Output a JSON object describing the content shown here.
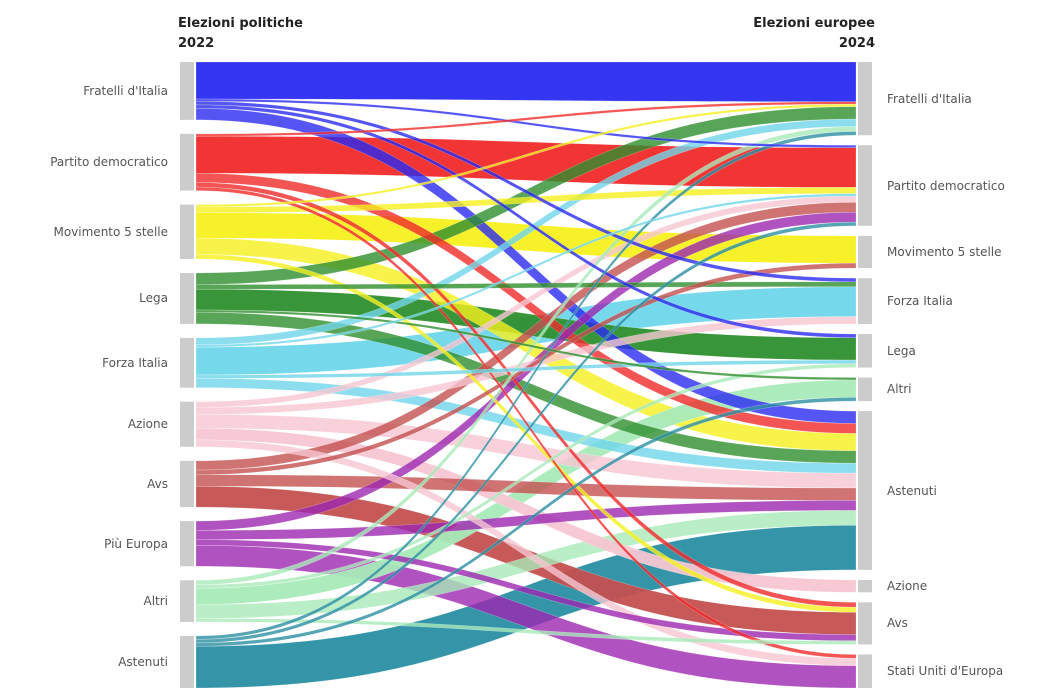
{
  "titles": {
    "left": [
      "Elezioni politiche",
      "2022"
    ],
    "right": [
      "Elezioni europee",
      "2024"
    ]
  },
  "colors": {
    "fratelli": "#2a2bf0",
    "pd": "#f02a2a",
    "m5s": "#f5f01e",
    "lega": "#2e8f2e",
    "fi": "#6fd6ea",
    "azione": "#f6c6d2",
    "avs": "#c45050",
    "piu_europa": "#9c27b0",
    "altri": "#a8eab8",
    "astenuti": "#2a8fa3",
    "sue": "#3cc43c",
    "neutral": "#cccccc"
  },
  "diagram": {
    "type": "sankey",
    "left_nodes": [
      {
        "id": "L_fdi",
        "label": "Fratelli d'Italia",
        "color": "fratelli"
      },
      {
        "id": "L_pd",
        "label": "Partito democratico",
        "color": "pd"
      },
      {
        "id": "L_m5s",
        "label": "Movimento 5 stelle",
        "color": "m5s"
      },
      {
        "id": "L_lega",
        "label": "Lega",
        "color": "lega"
      },
      {
        "id": "L_fi",
        "label": "Forza Italia",
        "color": "fi"
      },
      {
        "id": "L_azione",
        "label": "Azione",
        "color": "azione"
      },
      {
        "id": "L_avs",
        "label": "Avs",
        "color": "avs"
      },
      {
        "id": "L_pe",
        "label": "Più Europa",
        "color": "piu_europa"
      },
      {
        "id": "L_altri",
        "label": "Altri",
        "color": "altri"
      },
      {
        "id": "L_ast",
        "label": "Astenuti",
        "color": "astenuti"
      }
    ],
    "right_nodes": [
      {
        "id": "R_fdi",
        "label": "Fratelli d'Italia",
        "color": "fratelli"
      },
      {
        "id": "R_pd",
        "label": "Partito democratico",
        "color": "pd"
      },
      {
        "id": "R_m5s",
        "label": "Movimento 5 stelle",
        "color": "m5s"
      },
      {
        "id": "R_fi",
        "label": "Forza Italia",
        "color": "fi"
      },
      {
        "id": "R_lega",
        "label": "Lega",
        "color": "lega"
      },
      {
        "id": "R_altri",
        "label": "Altri",
        "color": "altri"
      },
      {
        "id": "R_ast",
        "label": "Astenuti",
        "color": "astenuti"
      },
      {
        "id": "R_azione",
        "label": "Azione",
        "color": "azione"
      },
      {
        "id": "R_avs",
        "label": "Avs",
        "color": "avs"
      },
      {
        "id": "R_sue",
        "label": "Stati Uniti d'Europa",
        "color": "sue"
      }
    ],
    "links": [
      {
        "from": "L_fdi",
        "to": "R_fdi",
        "value": 32
      },
      {
        "from": "L_fdi",
        "to": "R_ast",
        "value": 10
      },
      {
        "from": "L_fdi",
        "to": "R_lega",
        "value": 3
      },
      {
        "from": "L_fdi",
        "to": "R_fi",
        "value": 3
      },
      {
        "from": "L_fdi",
        "to": "R_pd",
        "value": 2
      },
      {
        "from": "L_pd",
        "to": "R_pd",
        "value": 32
      },
      {
        "from": "L_pd",
        "to": "R_ast",
        "value": 8
      },
      {
        "from": "L_pd",
        "to": "R_avs",
        "value": 4
      },
      {
        "from": "L_pd",
        "to": "R_sue",
        "value": 3
      },
      {
        "from": "L_pd",
        "to": "R_fdi",
        "value": 2
      },
      {
        "from": "L_m5s",
        "to": "R_m5s",
        "value": 22
      },
      {
        "from": "L_m5s",
        "to": "R_ast",
        "value": 14
      },
      {
        "from": "L_m5s",
        "to": "R_pd",
        "value": 5
      },
      {
        "from": "L_m5s",
        "to": "R_avs",
        "value": 4
      },
      {
        "from": "L_m5s",
        "to": "R_fdi",
        "value": 2
      },
      {
        "from": "L_lega",
        "to": "R_lega",
        "value": 18
      },
      {
        "from": "L_lega",
        "to": "R_fdi",
        "value": 10
      },
      {
        "from": "L_lega",
        "to": "R_ast",
        "value": 10
      },
      {
        "from": "L_lega",
        "to": "R_fi",
        "value": 4
      },
      {
        "from": "L_lega",
        "to": "R_altri",
        "value": 2
      },
      {
        "from": "L_fi",
        "to": "R_fi",
        "value": 24
      },
      {
        "from": "L_fi",
        "to": "R_fdi",
        "value": 6
      },
      {
        "from": "L_fi",
        "to": "R_ast",
        "value": 8
      },
      {
        "from": "L_fi",
        "to": "R_lega",
        "value": 3
      },
      {
        "from": "L_fi",
        "to": "R_pd",
        "value": 2
      },
      {
        "from": "L_azione",
        "to": "R_azione",
        "value": 10
      },
      {
        "from": "L_azione",
        "to": "R_ast",
        "value": 12
      },
      {
        "from": "L_azione",
        "to": "R_fi",
        "value": 6
      },
      {
        "from": "L_azione",
        "to": "R_pd",
        "value": 5
      },
      {
        "from": "L_azione",
        "to": "R_sue",
        "value": 6
      },
      {
        "from": "L_avs",
        "to": "R_avs",
        "value": 18
      },
      {
        "from": "L_avs",
        "to": "R_ast",
        "value": 10
      },
      {
        "from": "L_avs",
        "to": "R_pd",
        "value": 8
      },
      {
        "from": "L_avs",
        "to": "R_m5s",
        "value": 4
      },
      {
        "from": "L_pe",
        "to": "R_sue",
        "value": 18
      },
      {
        "from": "L_pe",
        "to": "R_ast",
        "value": 8
      },
      {
        "from": "L_pe",
        "to": "R_pd",
        "value": 8
      },
      {
        "from": "L_pe",
        "to": "R_avs",
        "value": 5
      },
      {
        "from": "L_altri",
        "to": "R_altri",
        "value": 14
      },
      {
        "from": "L_altri",
        "to": "R_ast",
        "value": 12
      },
      {
        "from": "L_altri",
        "to": "R_fdi",
        "value": 4
      },
      {
        "from": "L_altri",
        "to": "R_lega",
        "value": 3
      },
      {
        "from": "L_altri",
        "to": "R_avs",
        "value": 3
      },
      {
        "from": "L_ast",
        "to": "R_ast",
        "value": 36
      },
      {
        "from": "L_ast",
        "to": "R_fdi",
        "value": 3
      },
      {
        "from": "L_ast",
        "to": "R_pd",
        "value": 3
      },
      {
        "from": "L_ast",
        "to": "R_altri",
        "value": 3
      }
    ]
  }
}
